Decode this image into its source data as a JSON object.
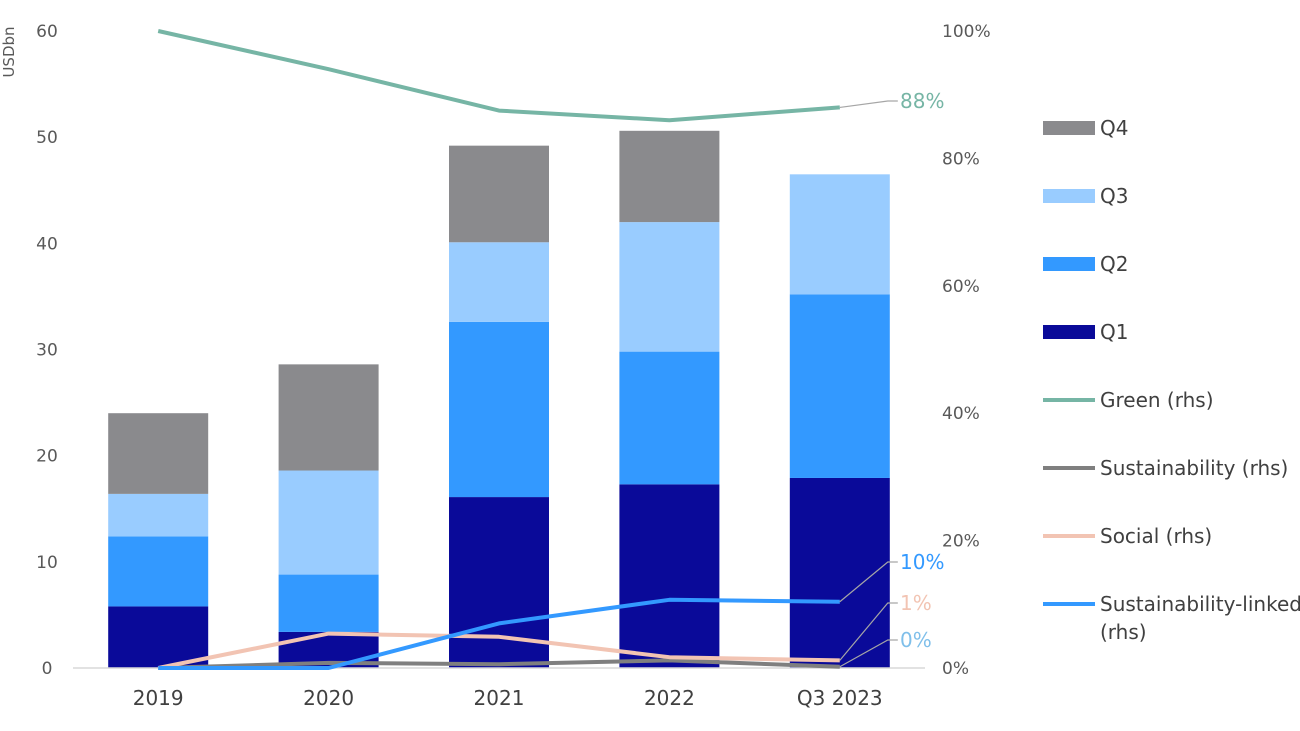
{
  "chart_data": {
    "type": "bar",
    "stacked": true,
    "categories": [
      "2019",
      "2020",
      "2021",
      "2022",
      "Q3 2023"
    ],
    "series": [
      {
        "name": "Q1",
        "kind": "bar",
        "axis": "left",
        "color": "#0A0A99",
        "values": [
          5.8,
          3.4,
          16.1,
          17.3,
          17.9
        ]
      },
      {
        "name": "Q2",
        "kind": "bar",
        "axis": "left",
        "color": "#3399FF",
        "values": [
          6.6,
          5.4,
          16.5,
          12.5,
          17.3
        ]
      },
      {
        "name": "Q3",
        "kind": "bar",
        "axis": "left",
        "color": "#99CCFF",
        "values": [
          4.0,
          9.8,
          7.5,
          12.2,
          11.3
        ]
      },
      {
        "name": "Q4",
        "kind": "bar",
        "axis": "left",
        "color": "#8A8A8D",
        "values": [
          7.6,
          10.0,
          9.1,
          8.6,
          0
        ]
      },
      {
        "name": "Green (rhs)",
        "kind": "line",
        "axis": "right",
        "color": "#76B5A5",
        "values": [
          100,
          94,
          87.5,
          86,
          88
        ]
      },
      {
        "name": "Sustainability (rhs)",
        "kind": "line",
        "axis": "right",
        "color": "#7F7F7F",
        "values": [
          0,
          0.8,
          0.6,
          1.2,
          0.2
        ]
      },
      {
        "name": "Social (rhs)",
        "kind": "line",
        "axis": "right",
        "color": "#F2C4B3",
        "values": [
          0,
          5.4,
          4.9,
          1.7,
          1.2
        ]
      },
      {
        "name": "Sustainability-linked (rhs)",
        "kind": "line",
        "axis": "right",
        "color": "#3399FF",
        "values": [
          0,
          0,
          7,
          10.7,
          10.4
        ]
      }
    ],
    "ylabel": "USDbn",
    "ylim": [
      0,
      60
    ],
    "yticks": [
      "0",
      "10",
      "20",
      "30",
      "40",
      "50",
      "60"
    ],
    "y2lim": [
      0,
      100
    ],
    "y2ticks": [
      "0%",
      "20%",
      "40%",
      "60%",
      "80%",
      "100%"
    ],
    "end_labels": [
      {
        "text": "88%",
        "color": "#76B5A5"
      },
      {
        "text": "10%",
        "color": "#3399FF"
      },
      {
        "text": "1%",
        "color": "#F2C4B3"
      },
      {
        "text": "0%",
        "color": "#7FBFEA"
      }
    ],
    "legend": {
      "position": "right",
      "items": [
        {
          "label": "Q4",
          "symbol": "box",
          "color": "#8A8A8D"
        },
        {
          "label": "Q3",
          "symbol": "box",
          "color": "#99CCFF"
        },
        {
          "label": "Q2",
          "symbol": "box",
          "color": "#3399FF"
        },
        {
          "label": "Q1",
          "symbol": "box",
          "color": "#0A0A99"
        },
        {
          "label": "Green (rhs)",
          "symbol": "line",
          "color": "#76B5A5"
        },
        {
          "label": "Sustainability (rhs)",
          "symbol": "line",
          "color": "#7F7F7F"
        },
        {
          "label": "Social (rhs)",
          "symbol": "line",
          "color": "#F2C4B3"
        },
        {
          "label": [
            "Sustainability-linked",
            "(rhs)"
          ],
          "symbol": "line",
          "color": "#3399FF"
        }
      ]
    },
    "grid": false
  }
}
